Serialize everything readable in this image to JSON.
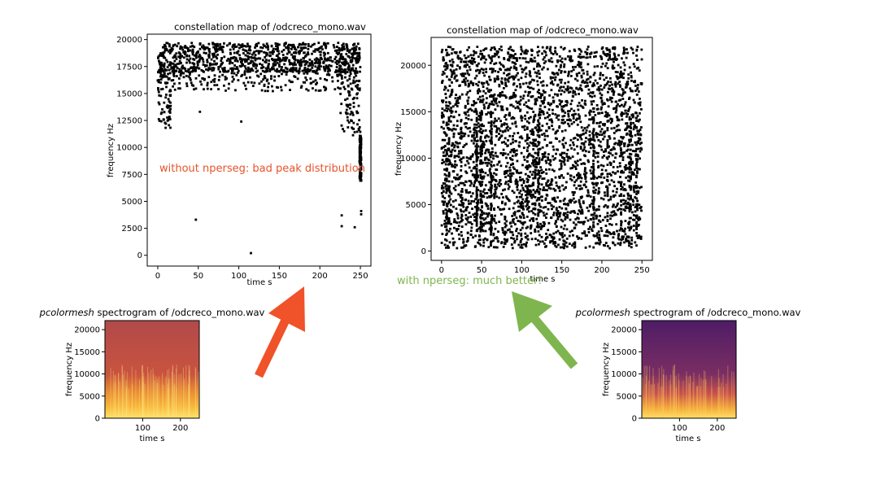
{
  "chart_data": [
    {
      "id": "constellation_without",
      "type": "scatter",
      "title": "constellation map of /odcreco_mono.wav",
      "xlabel": "time s",
      "ylabel": "frequency Hz",
      "xlim": [
        -13,
        263
      ],
      "ylim": [
        -1000,
        20500
      ],
      "xticks": [
        0,
        50,
        100,
        150,
        200,
        250
      ],
      "yticks": [
        0,
        2500,
        5000,
        7500,
        10000,
        12500,
        15000,
        17500,
        20000
      ],
      "annotation": "without nperseg: bad peak distribution",
      "distribution": "peaks concentrated near 14000–19800 Hz; sparse isolated peaks lower; dense column near t≈250 from 7000–11000 Hz",
      "sample_points": [
        [
          47,
          3300
        ],
        [
          115,
          200
        ],
        [
          103,
          12400
        ],
        [
          52,
          13300
        ],
        [
          227,
          3700
        ],
        [
          227,
          2700
        ],
        [
          243,
          2600
        ],
        [
          251,
          4100
        ],
        [
          251,
          3800
        ],
        [
          230,
          11500
        ],
        [
          10,
          12200
        ]
      ]
    },
    {
      "id": "constellation_with",
      "type": "scatter",
      "title": "constellation map of /odcreco_mono.wav",
      "xlabel": "time s",
      "ylabel": "frequency Hz",
      "xlim": [
        -13,
        263
      ],
      "ylim": [
        -1000,
        23000
      ],
      "xticks": [
        0,
        50,
        100,
        150,
        200,
        250
      ],
      "yticks": [
        0,
        5000,
        10000,
        15000,
        20000
      ],
      "annotation": "with nperseg: much better!",
      "distribution": "peaks spread uniformly over 0–22000 Hz across 0–250 s"
    },
    {
      "id": "spectrogram_left",
      "type": "heatmap",
      "title_italic": "pcolormesh",
      "title_rest": " spectrogram of /odcreco_mono.wav",
      "xlabel": "time s",
      "ylabel": "frequency Hz",
      "xticks": [
        100,
        200
      ],
      "yticks": [
        0,
        5000,
        10000,
        15000,
        20000
      ],
      "colormap": "inferno-like, bright yellow at low frequencies, reddish at high frequencies"
    },
    {
      "id": "spectrogram_right",
      "type": "heatmap",
      "title_italic": "pcolormesh",
      "title_rest": " spectrogram of /odcreco_mono.wav",
      "xlabel": "time s",
      "ylabel": "frequency Hz",
      "xticks": [
        100,
        200
      ],
      "yticks": [
        0,
        5000,
        10000,
        15000,
        20000
      ],
      "colormap": "inferno-like, bright yellow at low frequencies, dark purple at high frequencies"
    }
  ],
  "colors": {
    "red_arrow": "#f0522a",
    "green_arrow": "#7fb54e",
    "red_text": "#e8532b",
    "green_text": "#7fb54e"
  }
}
